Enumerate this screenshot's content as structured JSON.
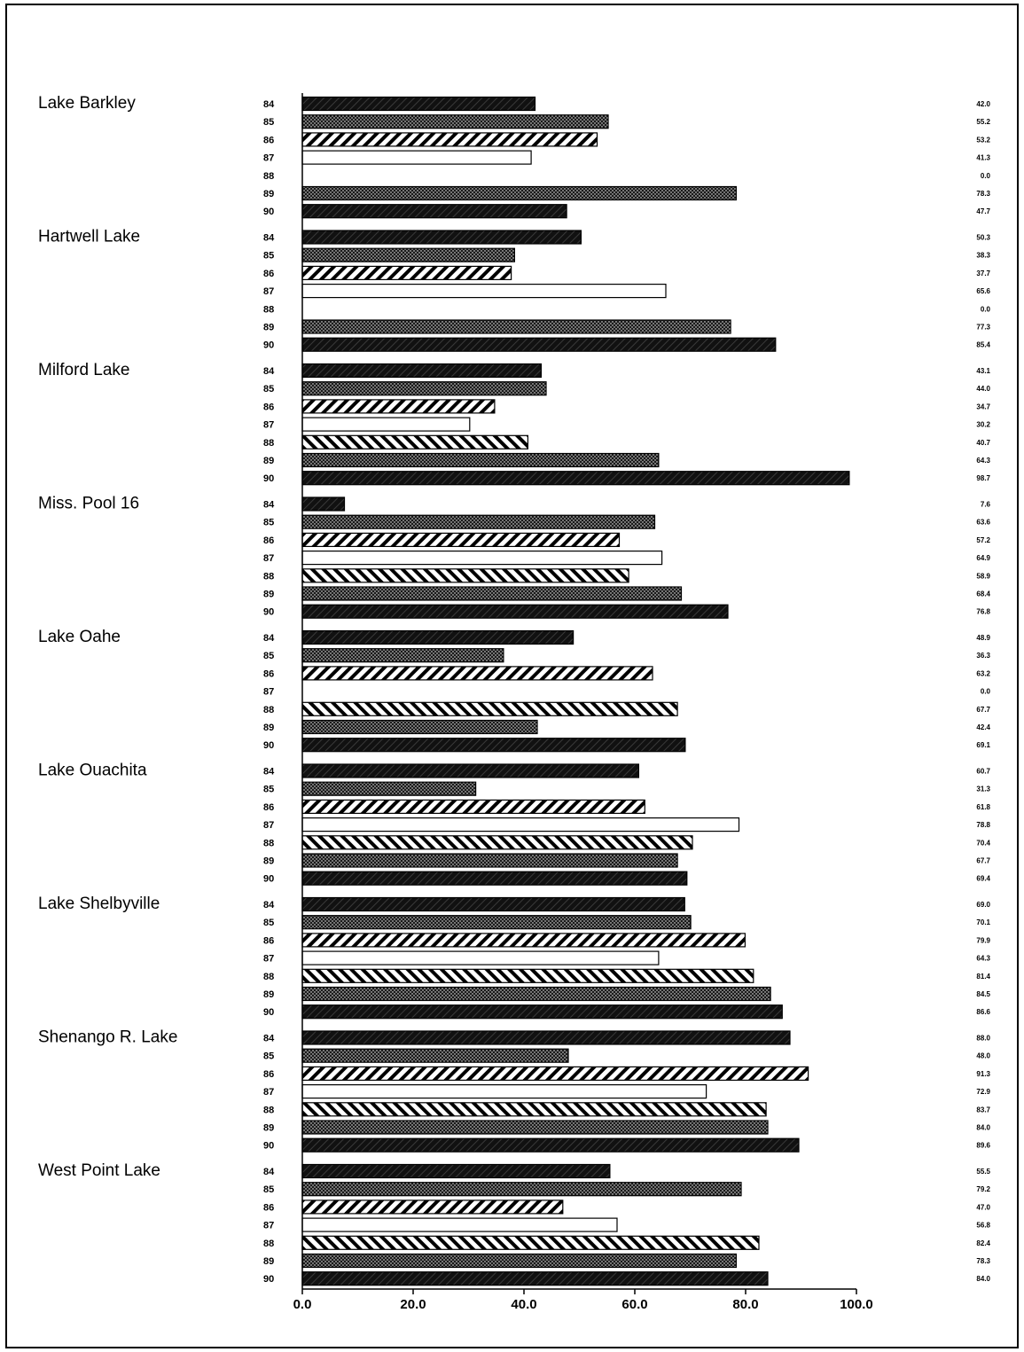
{
  "chart_data": {
    "type": "bar",
    "orientation": "horizontal",
    "xlim": [
      0,
      100
    ],
    "x_ticks": [
      "0.0",
      "20.0",
      "40.0",
      "60.0",
      "80.0",
      "100.0"
    ],
    "year_labels": [
      "84",
      "85",
      "86",
      "87",
      "88",
      "89",
      "90"
    ],
    "groups": [
      {
        "name": "Lake Barkley",
        "values": [
          42.0,
          55.2,
          53.2,
          41.3,
          0.0,
          78.3,
          47.7
        ],
        "labels": [
          "42.0",
          "55.2",
          "53.2",
          "41.3",
          "0.0",
          "78.3",
          "47.7"
        ]
      },
      {
        "name": "Hartwell Lake",
        "values": [
          50.3,
          38.3,
          37.7,
          65.6,
          0.0,
          77.3,
          85.4
        ],
        "labels": [
          "50.3",
          "38.3",
          "37.7",
          "65.6",
          "0.0",
          "77.3",
          "85.4"
        ]
      },
      {
        "name": "Milford Lake",
        "values": [
          43.1,
          44.0,
          34.7,
          30.2,
          40.7,
          64.3,
          98.7
        ],
        "labels": [
          "43.1",
          "44.0",
          "34.7",
          "30.2",
          "40.7",
          "64.3",
          "98.7"
        ]
      },
      {
        "name": "Miss. Pool 16",
        "values": [
          7.6,
          63.6,
          57.2,
          64.9,
          58.9,
          68.4,
          76.8
        ],
        "labels": [
          "7.6",
          "63.6",
          "57.2",
          "64.9",
          "58.9",
          "68.4",
          "76.8"
        ]
      },
      {
        "name": "Lake Oahe",
        "values": [
          48.9,
          36.3,
          63.2,
          0.0,
          67.7,
          42.4,
          69.1
        ],
        "labels": [
          "48.9",
          "36.3",
          "63.2",
          "0.0",
          "67.7",
          "42.4",
          "69.1"
        ]
      },
      {
        "name": "Lake Ouachita",
        "values": [
          60.7,
          31.3,
          61.8,
          78.8,
          70.4,
          67.7,
          69.4
        ],
        "labels": [
          "60.7",
          "31.3",
          "61.8",
          "78.8",
          "70.4",
          "67.7",
          "69.4"
        ]
      },
      {
        "name": "Lake Shelbyville",
        "values": [
          69.0,
          70.1,
          79.9,
          64.3,
          81.4,
          84.5,
          86.6
        ],
        "labels": [
          "69.0",
          "70.1",
          "79.9",
          "64.3",
          "81.4",
          "84.5",
          "86.6"
        ]
      },
      {
        "name": "Shenango R. Lake",
        "values": [
          88.0,
          48.0,
          91.3,
          72.9,
          83.7,
          84.0,
          89.6
        ],
        "labels": [
          "88.0",
          "48.0",
          "91.3",
          "72.9",
          "83.7",
          "84.0",
          "89.6"
        ]
      },
      {
        "name": "West Point Lake",
        "values": [
          55.5,
          79.2,
          47.0,
          56.8,
          82.4,
          78.3,
          84.0
        ],
        "labels": [
          "55.5",
          "79.2",
          "47.0",
          "56.8",
          "82.4",
          "78.3",
          "84.0"
        ]
      }
    ],
    "year_styles": {
      "84": "solid-dark",
      "85": "dotted",
      "86": "diagonal-forward",
      "87": "white",
      "88": "diagonal-back",
      "89": "dotted",
      "90": "solid-dark"
    },
    "colors": {
      "bar_dark": "#111111",
      "ink": "#000000",
      "background": "#ffffff"
    }
  }
}
